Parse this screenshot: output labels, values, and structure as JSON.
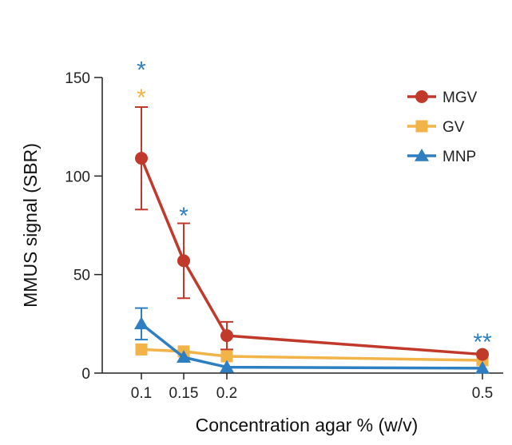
{
  "chart_data": {
    "type": "line",
    "title": "",
    "xlabel": "Concentration agar % (w/v)",
    "ylabel": "MMUS signal (SBR)",
    "x": [
      0.1,
      0.15,
      0.2,
      0.5
    ],
    "x_tick_labels": [
      "0.1",
      "0.15",
      "0.2",
      "0.5"
    ],
    "ylim": [
      0,
      150
    ],
    "y_ticks": [
      0,
      50,
      100,
      150
    ],
    "y_tick_labels": [
      "0",
      "50",
      "100",
      "150"
    ],
    "grid": false,
    "legend_position": "top-right",
    "series": [
      {
        "name": "MGV",
        "color": "#c0392b",
        "marker": "circle",
        "values": [
          109,
          57,
          19,
          9.5
        ],
        "errors": [
          26,
          19,
          7,
          null
        ]
      },
      {
        "name": "GV",
        "color": "#f2b349",
        "marker": "square",
        "values": [
          12,
          11,
          8.5,
          6.5
        ],
        "errors": [
          null,
          null,
          null,
          null
        ]
      },
      {
        "name": "MNP",
        "color": "#2e7fc1",
        "marker": "triangle",
        "values": [
          25,
          8,
          3,
          2.5
        ],
        "errors": [
          8,
          null,
          null,
          null
        ]
      }
    ],
    "annotations": [
      {
        "text": "*",
        "x": 0.1,
        "y": 155,
        "color": "#2e7fc1"
      },
      {
        "text": "*",
        "x": 0.1,
        "y": 141,
        "color": "#f2b349"
      },
      {
        "text": "*",
        "x": 0.15,
        "y": 81,
        "color": "#2e7fc1"
      },
      {
        "text": "**",
        "x": 0.5,
        "y": 17,
        "color": "#2e7fc1"
      }
    ]
  }
}
